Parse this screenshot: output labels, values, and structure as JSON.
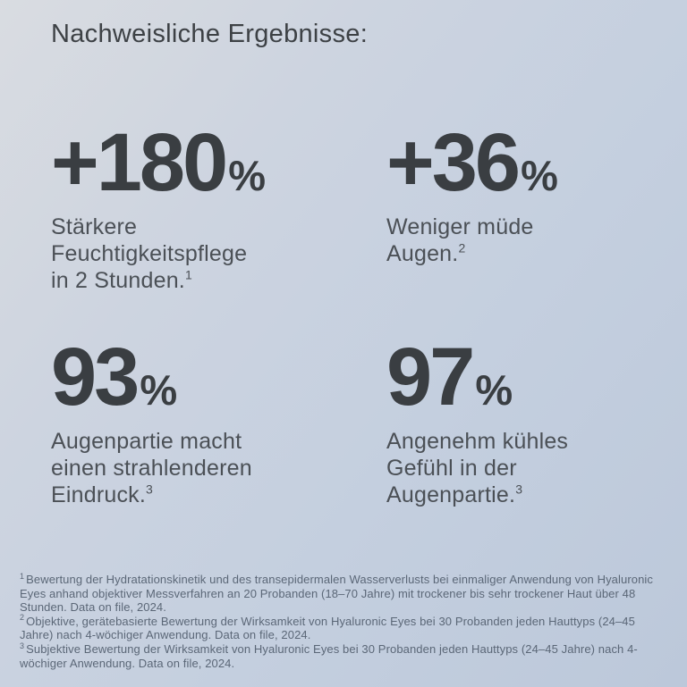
{
  "page": {
    "title": "Nachweisliche Ergebnisse:"
  },
  "stats": [
    {
      "value": "+180",
      "percent_sign": "%",
      "label_lines": [
        "Stärkere",
        "Feuchtigkeitspflege",
        "in 2 Stunden."
      ],
      "footnote_ref": "1"
    },
    {
      "value": "+36",
      "percent_sign": "%",
      "label_lines": [
        "Weniger müde",
        "Augen."
      ],
      "footnote_ref": "2"
    },
    {
      "value": "93",
      "percent_sign": "%",
      "label_lines": [
        "Augenpartie macht",
        "einen strahlenderen",
        "Eindruck."
      ],
      "footnote_ref": "3"
    },
    {
      "value": "97",
      "percent_sign": "%",
      "label_lines": [
        "Angenehm kühles",
        "Gefühl in der",
        "Augenpartie."
      ],
      "footnote_ref": "3"
    }
  ],
  "footnotes": [
    {
      "marker": "1",
      "text": "Bewertung der Hydratationskinetik und des transepidermalen Wasserverlusts bei einmaliger Anwendung von Hyaluronic Eyes anhand objektiver Messverfahren an 20 Probanden (18–70 Jahre) mit trockener bis sehr trockener Haut über 48 Stunden. Data on file, 2024."
    },
    {
      "marker": "2",
      "text": "Objektive, gerätebasierte Bewertung der Wirksamkeit von Hyaluronic Eyes bei 30 Probanden jeden Hauttyps (24–45 Jahre) nach 4-wöchiger Anwendung. Data on file, 2024."
    },
    {
      "marker": "3",
      "text": "Subjektive Bewertung der Wirksamkeit von Hyaluronic Eyes bei 30 Probanden jeden Hauttyps (24–45 Jahre) nach 4-wöchiger Anwendung. Data on file, 2024."
    }
  ],
  "colors": {
    "background_top_left": "#d9dce1",
    "background_bottom_right": "#bcc8da",
    "number_text": "#3a3e42",
    "label_text": "#4b5056",
    "footnote_text": "#5b6777",
    "title_text": "#3d4145"
  }
}
